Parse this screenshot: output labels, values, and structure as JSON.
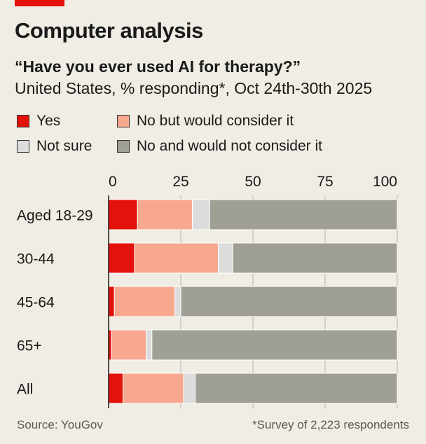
{
  "header": {
    "title": "Computer analysis",
    "subtitle": "“Have you ever used AI for therapy?”",
    "description": "United States, % responding*, Oct 24th-30th 2025"
  },
  "colors": {
    "yes": "#e3120b",
    "consider": "#f7a88f",
    "not_sure": "#dcdcdc",
    "not_consider": "#a09f95",
    "accent": "#e3120b",
    "background": "#f0ede4"
  },
  "chart_data": {
    "type": "bar",
    "orientation": "horizontal",
    "stacked": true,
    "title": "“Have you ever used AI for therapy?”",
    "xlabel": "% responding",
    "xlim": [
      0,
      100
    ],
    "xticks": [
      "0",
      "25",
      "50",
      "75",
      "100"
    ],
    "categories": [
      "Aged 18-29",
      "30-44",
      "45-64",
      "65+",
      "All"
    ],
    "series": [
      {
        "name": "Yes",
        "color_key": "yes",
        "values": [
          10,
          9,
          2,
          1,
          5
        ]
      },
      {
        "name": "No but would consider it",
        "color_key": "consider",
        "values": [
          19,
          29,
          21,
          12,
          21
        ]
      },
      {
        "name": "Not sure",
        "color_key": "not_sure",
        "values": [
          6,
          5,
          2,
          2,
          4
        ]
      },
      {
        "name": "No and would not consider it",
        "color_key": "not_consider",
        "values": [
          65,
          57,
          75,
          85,
          70
        ]
      }
    ],
    "legend_position": "top"
  },
  "footer": {
    "source": "Source: YouGov",
    "note": "*Survey of 2,223 respondents"
  }
}
